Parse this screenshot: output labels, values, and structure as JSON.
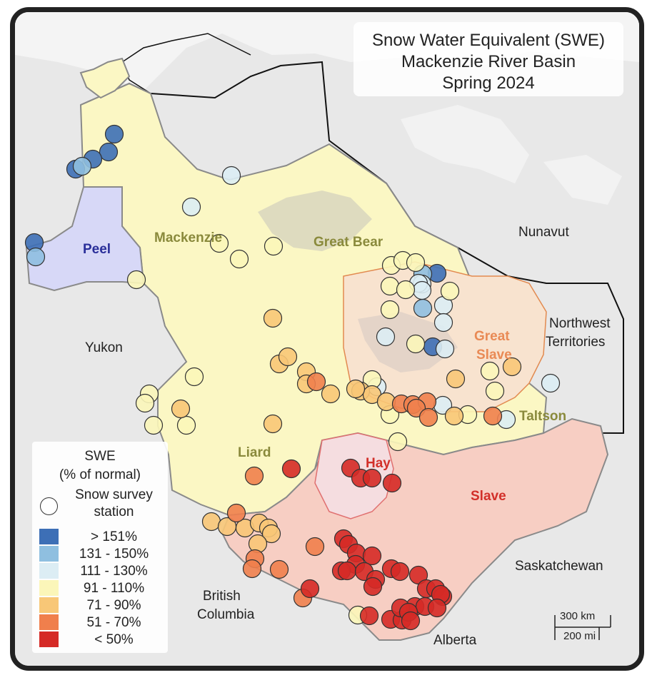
{
  "title": {
    "line1": "Snow Water Equivalent (SWE)",
    "line2": "Mackenzie River Basin",
    "line3": "Spring 2024"
  },
  "basins": {
    "peel": "Peel",
    "mackenzie": "Mackenzie",
    "great_bear": "Great Bear",
    "great_slave_1": "Great",
    "great_slave_2": "Slave",
    "liard": "Liard",
    "hay": "Hay",
    "slave": "Slave",
    "taltson": "Taltson"
  },
  "places": {
    "nunavut": "Nunavut",
    "nwt_1": "Northwest",
    "nwt_2": "Territories",
    "yukon": "Yukon",
    "bc_1": "British",
    "bc_2": "Columbia",
    "saskatchewan": "Saskatchewan",
    "alberta": "Alberta"
  },
  "legend": {
    "title_1": "SWE",
    "title_2": "(% of normal)",
    "station_1": "Snow survey",
    "station_2": "station",
    "classes": [
      {
        "label": "> 151%",
        "color": "#3d6fb6"
      },
      {
        "label": "131 - 150%",
        "color": "#8fbfe0"
      },
      {
        "label": "111 - 130%",
        "color": "#dcedf4"
      },
      {
        "label": "91 - 110%",
        "color": "#fbf6b9"
      },
      {
        "label": "71 - 90%",
        "color": "#f8c777"
      },
      {
        "label": "51 - 70%",
        "color": "#f07f4c"
      },
      {
        "label": "< 50%",
        "color": "#d52a26"
      }
    ]
  },
  "scale": {
    "km": "300 km",
    "mi": "200 mi"
  },
  "stations": [
    [
      160,
      188,
      0
    ],
    [
      152,
      213,
      0
    ],
    [
      130,
      223,
      0
    ],
    [
      106,
      237,
      0
    ],
    [
      48,
      340,
      0
    ],
    [
      612,
      383,
      0
    ],
    [
      606,
      486,
      0
    ],
    [
      50,
      360,
      1
    ],
    [
      115,
      233,
      1
    ],
    [
      592,
      384,
      1
    ],
    [
      592,
      432,
      1
    ],
    [
      591,
      398,
      2
    ],
    [
      621,
      428,
      2
    ],
    [
      324,
      246,
      2
    ],
    [
      268,
      290,
      2
    ],
    [
      586,
      397,
      2
    ],
    [
      591,
      407,
      2
    ],
    [
      621,
      452,
      2
    ],
    [
      540,
      472,
      2
    ],
    [
      623,
      489,
      2
    ],
    [
      771,
      537,
      2
    ],
    [
      620,
      568,
      2
    ],
    [
      709,
      588,
      2
    ],
    [
      528,
      542,
      2
    ],
    [
      191,
      392,
      3
    ],
    [
      307,
      341,
      3
    ],
    [
      335,
      363,
      3
    ],
    [
      383,
      345,
      3
    ],
    [
      548,
      372,
      3
    ],
    [
      564,
      365,
      3
    ],
    [
      582,
      368,
      3
    ],
    [
      546,
      401,
      3
    ],
    [
      568,
      406,
      3
    ],
    [
      546,
      434,
      3
    ],
    [
      630,
      408,
      3
    ],
    [
      582,
      482,
      3
    ],
    [
      272,
      528,
      3
    ],
    [
      209,
      552,
      3
    ],
    [
      203,
      565,
      3
    ],
    [
      215,
      596,
      3
    ],
    [
      261,
      596,
      3
    ],
    [
      521,
      532,
      3
    ],
    [
      546,
      581,
      3
    ],
    [
      686,
      520,
      3
    ],
    [
      693,
      548,
      3
    ],
    [
      655,
      581,
      3
    ],
    [
      557,
      619,
      3
    ],
    [
      501,
      862,
      3
    ],
    [
      382,
      446,
      4
    ],
    [
      391,
      510,
      4
    ],
    [
      403,
      500,
      4
    ],
    [
      429,
      521,
      4
    ],
    [
      429,
      538,
      4
    ],
    [
      463,
      552,
      4
    ],
    [
      505,
      548,
      4
    ],
    [
      521,
      553,
      4
    ],
    [
      541,
      563,
      4
    ],
    [
      638,
      531,
      4
    ],
    [
      717,
      514,
      4
    ],
    [
      253,
      573,
      4
    ],
    [
      382,
      594,
      4
    ],
    [
      636,
      583,
      4
    ],
    [
      296,
      731,
      4
    ],
    [
      318,
      738,
      4
    ],
    [
      343,
      740,
      4
    ],
    [
      363,
      733,
      4
    ],
    [
      376,
      740,
      4
    ],
    [
      380,
      748,
      4
    ],
    [
      361,
      762,
      4
    ],
    [
      498,
      545,
      4
    ],
    [
      443,
      535,
      5
    ],
    [
      562,
      566,
      5
    ],
    [
      578,
      567,
      5
    ],
    [
      598,
      563,
      5
    ],
    [
      583,
      572,
      5
    ],
    [
      600,
      585,
      5
    ],
    [
      690,
      583,
      5
    ],
    [
      356,
      667,
      5
    ],
    [
      331,
      719,
      5
    ],
    [
      357,
      783,
      5
    ],
    [
      353,
      797,
      5
    ],
    [
      391,
      798,
      5
    ],
    [
      441,
      766,
      5
    ],
    [
      424,
      838,
      5
    ],
    [
      408,
      657,
      6
    ],
    [
      491,
      656,
      6
    ],
    [
      505,
      670,
      6
    ],
    [
      521,
      670,
      6
    ],
    [
      549,
      677,
      6
    ],
    [
      481,
      755,
      6
    ],
    [
      488,
      763,
      6
    ],
    [
      499,
      775,
      6
    ],
    [
      521,
      779,
      6
    ],
    [
      498,
      791,
      6
    ],
    [
      478,
      800,
      6
    ],
    [
      486,
      800,
      6
    ],
    [
      510,
      801,
      6
    ],
    [
      526,
      812,
      6
    ],
    [
      548,
      797,
      6
    ],
    [
      560,
      801,
      6
    ],
    [
      586,
      806,
      6
    ],
    [
      522,
      822,
      6
    ],
    [
      434,
      825,
      6
    ],
    [
      517,
      863,
      6
    ],
    [
      547,
      868,
      6
    ],
    [
      563,
      869,
      6
    ],
    [
      597,
      825,
      6
    ],
    [
      610,
      825,
      6
    ],
    [
      620,
      836,
      6
    ],
    [
      617,
      833,
      6
    ],
    [
      581,
      850,
      6
    ],
    [
      595,
      850,
      6
    ],
    [
      612,
      852,
      6
    ],
    [
      561,
      852,
      6
    ],
    [
      572,
      858,
      6
    ],
    [
      575,
      870,
      6
    ]
  ]
}
